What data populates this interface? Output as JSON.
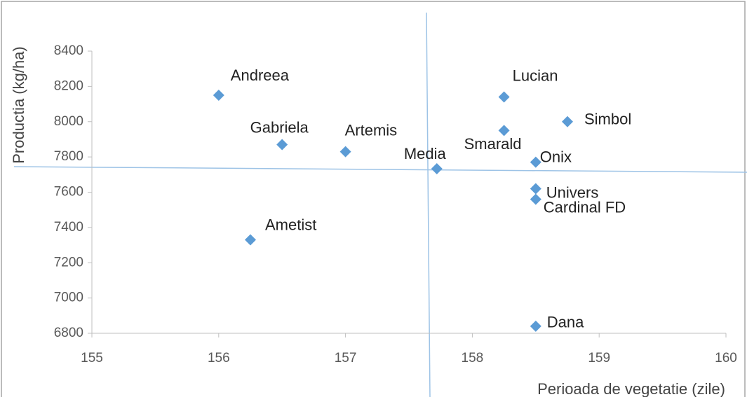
{
  "chart_data": {
    "type": "scatter",
    "xlabel": "Perioada de vegetatie (zile)",
    "ylabel": "Productia (kg/ha)",
    "series": [
      {
        "color": "#5b9bd5",
        "labels": [
          "Andreea",
          "Gabriela",
          "Artemis",
          "Ametist",
          "Media",
          "Lucian",
          "Smarald",
          "Simbol",
          "Onix",
          "Univers",
          "Cardinal FD",
          "Dana"
        ],
        "x": [
          156,
          156.5,
          157,
          156.25,
          157.72,
          158.25,
          158.25,
          158.75,
          158.5,
          158.5,
          158.5,
          158.5
        ],
        "values": [
          8150,
          7870,
          7830,
          7330,
          7733,
          8140,
          7950,
          8000,
          7770,
          7620,
          7560,
          6840
        ]
      }
    ],
    "xlim": [
      155,
      160
    ],
    "xticks": [
      155,
      156,
      157,
      158,
      159,
      160
    ],
    "ylim": [
      6800,
      8400
    ],
    "yticks": [
      6800,
      7000,
      7200,
      7400,
      7600,
      7800,
      8000,
      8200,
      8400
    ],
    "grid": false
  }
}
